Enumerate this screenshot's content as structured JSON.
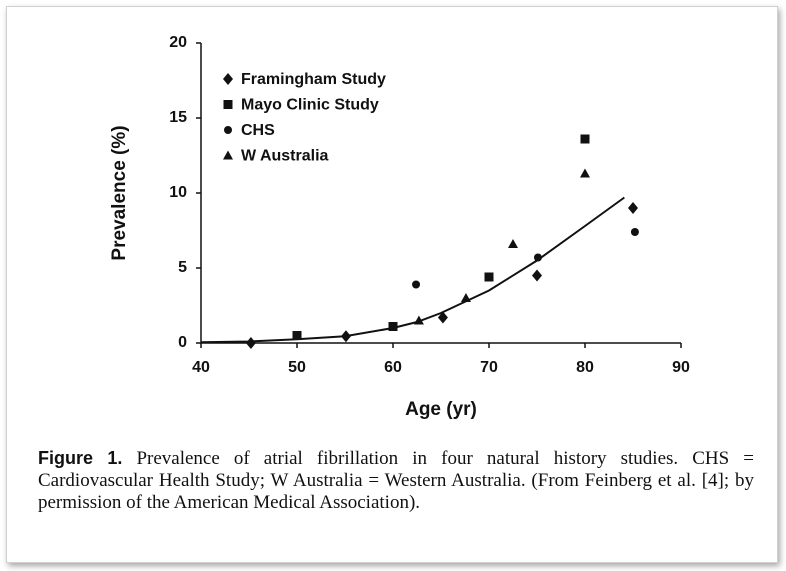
{
  "chart_data": {
    "type": "scatter",
    "x_label": "Age (yr)",
    "y_label": "Prevalence (%)",
    "xlim": [
      40,
      90
    ],
    "xticks": [
      40,
      50,
      60,
      70,
      80,
      90
    ],
    "ylim": [
      0,
      20
    ],
    "yticks": [
      0,
      5,
      10,
      15,
      20
    ],
    "legend": "upper left",
    "series": [
      {
        "name": "Framingham Study",
        "color": "#111111",
        "marker": "diamond",
        "x": [
          45.2,
          55.1,
          65.2,
          75,
          85
        ],
        "values": [
          0,
          0.45,
          1.7,
          4.5,
          9.0
        ]
      },
      {
        "name": "Mayo Clinic Study",
        "color": "#111111",
        "marker": "square",
        "x": [
          50,
          60,
          70,
          80
        ],
        "values": [
          0.5,
          1.1,
          4.4,
          13.6
        ]
      },
      {
        "name": "CHS",
        "color": "#111111",
        "marker": "circle",
        "x": [
          62.4,
          75.1,
          85.2
        ],
        "values": [
          3.9,
          5.7,
          7.4
        ]
      },
      {
        "name": "W Australia",
        "color": "#111111",
        "marker": "triangle",
        "x": [
          62.7,
          67.6,
          72.5,
          80
        ],
        "values": [
          1.5,
          3.0,
          6.6,
          11.3
        ]
      }
    ],
    "trend_line": {
      "color": "#111111",
      "x": [
        40,
        45,
        50,
        55,
        60,
        62.5,
        65,
        70,
        75,
        80,
        84.1
      ],
      "values": [
        0.05,
        0.1,
        0.25,
        0.45,
        1.0,
        1.4,
        2.0,
        3.5,
        5.5,
        7.8,
        9.7
      ]
    }
  },
  "caption": {
    "label": "Figure 1.",
    "text": "Prevalence of atrial fibrillation in four natural history studies. CHS = Cardiovascular Health Study; W Australia = Western Australia. (From Feinberg et al. [4]; by permission of the American Medical Association)."
  }
}
